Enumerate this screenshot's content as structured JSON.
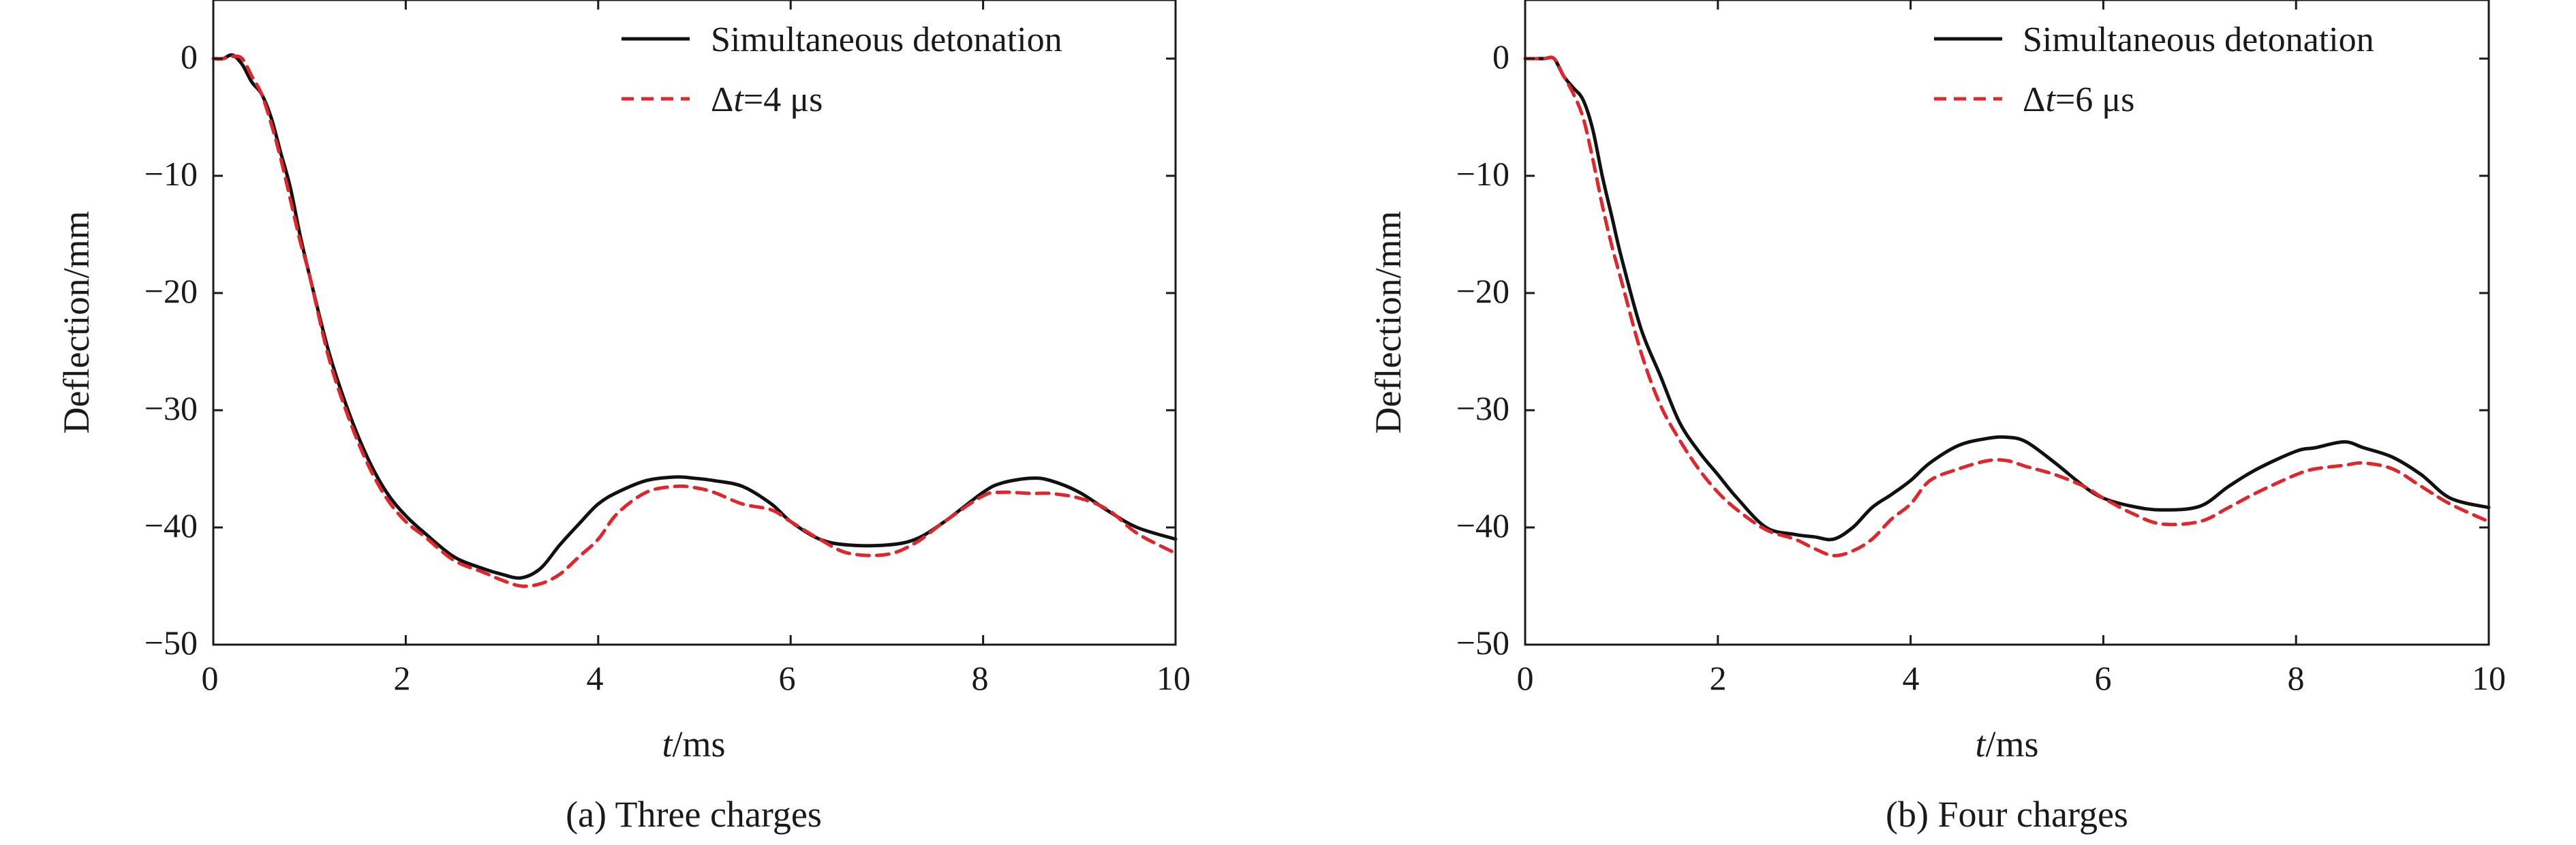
{
  "chart_data": [
    {
      "type": "line",
      "caption": "(a) Three charges",
      "xlabel_italic": "t",
      "xlabel_unit": "/ms",
      "ylabel": "Deflection/mm",
      "xlim": [
        0,
        10
      ],
      "ylim": [
        -50,
        5
      ],
      "xticks": [
        0,
        2,
        4,
        6,
        8,
        10
      ],
      "yticks": [
        0,
        -10,
        -20,
        -30,
        -40,
        -50
      ],
      "xtick_labels": [
        "0",
        "2",
        "4",
        "6",
        "8",
        "10"
      ],
      "ytick_labels": [
        "0",
        "−10",
        "−20",
        "−30",
        "−40",
        "−50"
      ],
      "grid": false,
      "legend_position": "top-right",
      "legend": {
        "solid_label": "Simultaneous detonation",
        "dashed_prefix": "Δ",
        "dashed_italic": "t",
        "dashed_suffix": "=4 μs"
      },
      "series": [
        {
          "name": "Simultaneous detonation",
          "style": "solid",
          "color": "#111111",
          "x": [
            0,
            0.1,
            0.2,
            0.3,
            0.4,
            0.5,
            0.6,
            0.7,
            0.8,
            0.9,
            1.0,
            1.2,
            1.4,
            1.6,
            1.8,
            2.0,
            2.2,
            2.5,
            2.8,
            3.0,
            3.2,
            3.4,
            3.6,
            3.8,
            4.0,
            4.2,
            4.5,
            4.8,
            5.0,
            5.2,
            5.5,
            5.8,
            6.0,
            6.3,
            6.6,
            7.0,
            7.3,
            7.6,
            8.0,
            8.2,
            8.5,
            8.7,
            9.0,
            9.3,
            9.6,
            10.0
          ],
          "y": [
            0,
            0,
            0.3,
            -0.5,
            -2,
            -3,
            -5,
            -8,
            -11,
            -15,
            -18.5,
            -25,
            -30,
            -34,
            -37,
            -39,
            -40.5,
            -42.5,
            -43.5,
            -44,
            -44.3,
            -43.5,
            -41.5,
            -39.7,
            -38,
            -37,
            -36,
            -35.7,
            -35.8,
            -36,
            -36.5,
            -38,
            -39.5,
            -41,
            -41.5,
            -41.5,
            -41,
            -39.5,
            -37,
            -36.2,
            -35.8,
            -36,
            -37,
            -38.6,
            -40,
            -41
          ]
        },
        {
          "name": "Δt=4 μs",
          "style": "dashed",
          "color": "#e0262b",
          "x": [
            0,
            0.1,
            0.2,
            0.3,
            0.4,
            0.5,
            0.6,
            0.7,
            0.8,
            0.9,
            1.0,
            1.2,
            1.4,
            1.6,
            1.8,
            2.0,
            2.2,
            2.5,
            2.8,
            3.0,
            3.2,
            3.4,
            3.6,
            3.8,
            4.0,
            4.2,
            4.5,
            4.8,
            5.0,
            5.2,
            5.5,
            5.8,
            6.0,
            6.3,
            6.6,
            7.0,
            7.3,
            7.6,
            8.0,
            8.2,
            8.5,
            8.7,
            9.0,
            9.3,
            9.6,
            10.0
          ],
          "y": [
            0,
            0,
            0.2,
            0,
            -1.5,
            -3,
            -5.5,
            -8.5,
            -12,
            -15.5,
            -18.5,
            -25.5,
            -30.5,
            -34.5,
            -37.5,
            -39.5,
            -40.8,
            -42.8,
            -43.8,
            -44.5,
            -45,
            -44.8,
            -44,
            -42.5,
            -41,
            -38.8,
            -37,
            -36.5,
            -36.6,
            -37,
            -38,
            -38.5,
            -39.5,
            -41,
            -42.2,
            -42.3,
            -41.3,
            -39.5,
            -37.3,
            -37,
            -37.1,
            -37.1,
            -37.5,
            -38.5,
            -40.5,
            -42.2
          ]
        }
      ]
    },
    {
      "type": "line",
      "caption": "(b) Four charges",
      "xlabel_italic": "t",
      "xlabel_unit": "/ms",
      "ylabel": "Deflection/mm",
      "xlim": [
        0,
        10
      ],
      "ylim": [
        -50,
        5
      ],
      "xticks": [
        0,
        2,
        4,
        6,
        8,
        10
      ],
      "yticks": [
        0,
        -10,
        -20,
        -30,
        -40,
        -50
      ],
      "xtick_labels": [
        "0",
        "2",
        "4",
        "6",
        "8",
        "10"
      ],
      "ytick_labels": [
        "0",
        "−10",
        "−20",
        "−30",
        "−40",
        "−50"
      ],
      "grid": false,
      "legend_position": "top-right",
      "legend": {
        "solid_label": "Simultaneous detonation",
        "dashed_prefix": "Δ",
        "dashed_italic": "t",
        "dashed_suffix": "=6 μs"
      },
      "series": [
        {
          "name": "Simultaneous detonation",
          "style": "solid",
          "color": "#111111",
          "x": [
            0,
            0.1,
            0.2,
            0.3,
            0.4,
            0.5,
            0.6,
            0.7,
            0.8,
            0.9,
            1.0,
            1.2,
            1.4,
            1.6,
            1.8,
            2.0,
            2.2,
            2.5,
            2.8,
            3.0,
            3.2,
            3.4,
            3.6,
            3.8,
            4.0,
            4.2,
            4.5,
            4.8,
            5.0,
            5.2,
            5.5,
            5.8,
            6.0,
            6.3,
            6.6,
            7.0,
            7.3,
            7.6,
            8.0,
            8.2,
            8.5,
            8.7,
            9.0,
            9.3,
            9.6,
            10.0
          ],
          "y": [
            0,
            0,
            0,
            0,
            -1.5,
            -2.5,
            -3.5,
            -6,
            -10,
            -13.5,
            -17,
            -23,
            -27,
            -31,
            -33.5,
            -35.5,
            -37.5,
            -40,
            -40.6,
            -40.8,
            -41,
            -40,
            -38.3,
            -37.2,
            -36,
            -34.5,
            -33,
            -32.4,
            -32.3,
            -32.7,
            -34.5,
            -36.5,
            -37.5,
            -38.2,
            -38.5,
            -38.2,
            -36.5,
            -35,
            -33.5,
            -33.2,
            -32.7,
            -33.2,
            -34,
            -35.5,
            -37.5,
            -38.3
          ]
        },
        {
          "name": "Δt=6 μs",
          "style": "dashed",
          "color": "#e0262b",
          "x": [
            0,
            0.1,
            0.2,
            0.3,
            0.4,
            0.5,
            0.6,
            0.7,
            0.8,
            0.9,
            1.0,
            1.2,
            1.4,
            1.6,
            1.8,
            2.0,
            2.2,
            2.5,
            2.8,
            3.0,
            3.2,
            3.4,
            3.6,
            3.8,
            4.0,
            4.2,
            4.5,
            4.8,
            5.0,
            5.2,
            5.5,
            5.8,
            6.0,
            6.3,
            6.6,
            7.0,
            7.3,
            7.6,
            8.0,
            8.2,
            8.5,
            8.7,
            9.0,
            9.3,
            9.6,
            10.0
          ],
          "y": [
            0,
            0,
            0,
            0,
            -1.5,
            -3,
            -5,
            -8.5,
            -12.5,
            -16,
            -19,
            -25,
            -29.5,
            -32.5,
            -35,
            -37,
            -38.5,
            -40.2,
            -41,
            -41.8,
            -42.4,
            -42,
            -41,
            -39.3,
            -38,
            -36,
            -35,
            -34.3,
            -34.3,
            -34.8,
            -35.5,
            -36.5,
            -37.5,
            -38.8,
            -39.7,
            -39.5,
            -38.3,
            -37,
            -35.5,
            -35,
            -34.7,
            -34.5,
            -35,
            -36.5,
            -38,
            -39.5
          ]
        }
      ]
    }
  ]
}
